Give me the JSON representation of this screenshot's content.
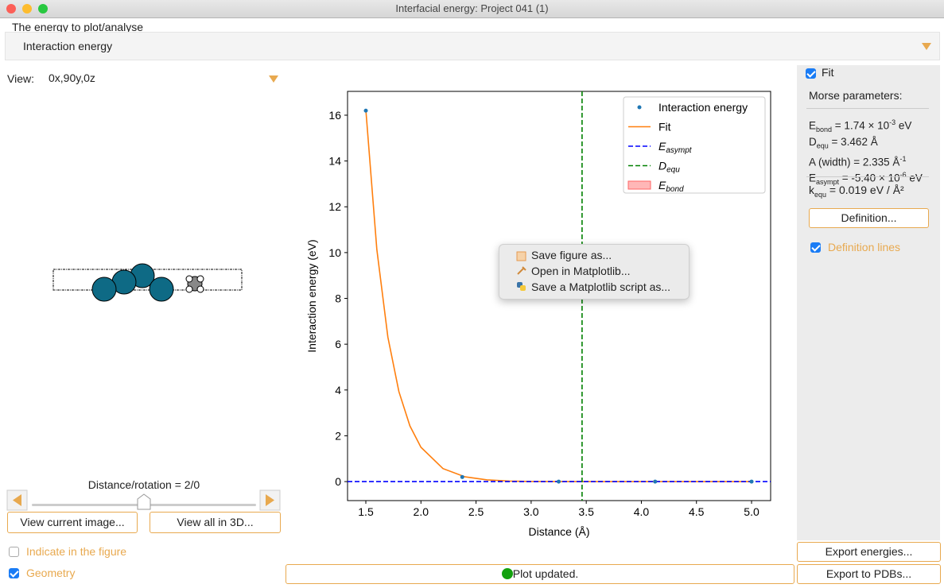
{
  "window": {
    "title": "Interfacial energy: Project 041 (1)"
  },
  "energy": {
    "label": "The energy to plot/analyse",
    "selected": "Interaction energy"
  },
  "view": {
    "label": "View:",
    "value": "0x,90y,0z"
  },
  "slider": {
    "label": "Distance/rotation = 2/0"
  },
  "left_buttons": [
    "View current image...",
    "View all in 3D..."
  ],
  "left_checkboxes": [
    {
      "label": "Indicate in the figure",
      "checked": false
    },
    {
      "label": "Geometry",
      "checked": true
    }
  ],
  "status": "Plot updated.",
  "fit_panel": {
    "checkbox": {
      "label": "Fit",
      "checked": true
    },
    "heading": "Morse parameters:",
    "parameters": [
      [
        {
          "text": "E"
        },
        {
          "sub": "bond"
        },
        {
          "text": " = 1.74 × 10"
        },
        {
          "sup": "-3"
        },
        {
          "text": " eV"
        }
      ],
      [
        {
          "text": "D"
        },
        {
          "sub": "equ"
        },
        {
          "text": " = 3.462 Å"
        }
      ],
      [
        {
          "text": "A (width) = 2.335 Å"
        },
        {
          "sup": "-1"
        }
      ],
      [
        {
          "text": "E"
        },
        {
          "sub": "asympt"
        },
        {
          "text": " = -5.40 × 10"
        },
        {
          "sup": "-6"
        },
        {
          "text": " eV"
        }
      ]
    ],
    "k_equ": [
      {
        "text": "k"
      },
      {
        "sub": "equ"
      },
      {
        "text": " = 0.019 eV / Å²"
      }
    ],
    "definition_button": "Definition...",
    "definition_lines": {
      "label": "Definition lines",
      "checked": true
    }
  },
  "export_buttons": [
    "Export energies...",
    "Export to PDBs..."
  ],
  "context_menu": [
    "Save figure as...",
    "Open in Matplotlib...",
    "Save a Matplotlib script as..."
  ],
  "chart_data": {
    "type": "line",
    "xlabel": "Distance (Å)",
    "ylabel": "Interaction energy (eV)",
    "xlim": [
      1.334,
      5.173
    ],
    "ylim": [
      -0.83,
      17.04
    ],
    "xticks": [
      1.5,
      {
        "value": 2,
        "label": "2.0"
      },
      2.5,
      {
        "value": 3,
        "label": "3.0"
      },
      3.5,
      {
        "value": 4,
        "label": "4.0"
      },
      4.5,
      {
        "value": 5,
        "label": "5.0"
      }
    ],
    "yticks": [
      0,
      2,
      4,
      6,
      8,
      10,
      12,
      14,
      16
    ],
    "legend": "upper right",
    "series": [
      {
        "name": "Interaction energy",
        "type": "scatter",
        "color": "#1f77b4",
        "x": [
          1.5,
          2.375,
          3.25,
          4.125,
          5.0
        ],
        "values": [
          16.2,
          0.2,
          0,
          0,
          0
        ]
      },
      {
        "name": "Fit",
        "type": "line",
        "color": "#ff7f0e",
        "x": [
          1.5,
          1.6,
          1.7,
          1.8,
          1.9,
          2.0,
          2.2,
          2.4,
          2.6,
          2.8,
          3.0,
          3.5,
          4.0,
          4.5,
          5.0
        ],
        "values": [
          16.24,
          10.13,
          6.31,
          3.93,
          2.43,
          1.5,
          0.567,
          0.208,
          0.073,
          0.024,
          0.0066,
          0,
          0,
          0,
          0
        ]
      },
      {
        "name": {
          "symbol": "E",
          "subscript": "asympt"
        },
        "type": "hline",
        "color": "#0000ff",
        "values": [
          -5.4e-06
        ]
      },
      {
        "name": {
          "symbol": "D",
          "subscript": "equ"
        },
        "type": "vline",
        "color": "#008000",
        "x": [
          3.462
        ]
      },
      {
        "name": {
          "symbol": "E",
          "subscript": "bond"
        },
        "type": "span",
        "color": "#ff9999"
      }
    ]
  }
}
